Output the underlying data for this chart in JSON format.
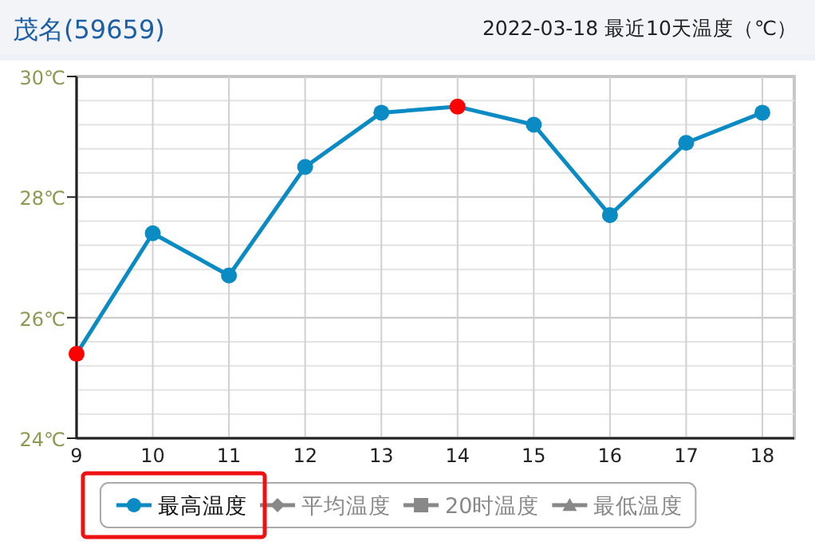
{
  "chart_data": {
    "type": "line",
    "title": "茂名(59659)",
    "subtitle": "2022-03-18 最近10天温度（℃）",
    "categories": [
      "9",
      "10",
      "11",
      "12",
      "13",
      "14",
      "15",
      "16",
      "17",
      "18"
    ],
    "series": [
      {
        "name": "最高温度",
        "color": "#0a8bc4",
        "colors": [
          "#ff0000",
          "#0a8bc4",
          "#0a8bc4",
          "#0a8bc4",
          "#0a8bc4",
          "#ff0000",
          "#0a8bc4",
          "#0a8bc4",
          "#0a8bc4",
          "#0a8bc4"
        ],
        "marker": "circle",
        "values": [
          25.4,
          27.4,
          26.7,
          28.5,
          29.4,
          29.5,
          29.2,
          27.7,
          28.9,
          29.4
        ]
      },
      {
        "name": "平均温度",
        "color": "#888888",
        "marker": "diamond",
        "values": [
          null,
          null,
          null,
          null,
          null,
          null,
          null,
          null,
          null,
          null
        ]
      },
      {
        "name": "20时温度",
        "color": "#888888",
        "marker": "square",
        "values": [
          null,
          null,
          null,
          null,
          null,
          null,
          null,
          null,
          null,
          null
        ]
      },
      {
        "name": "最低温度",
        "color": "#888888",
        "marker": "triangle",
        "values": [
          null,
          null,
          null,
          null,
          null,
          null,
          null,
          null,
          null,
          null
        ]
      }
    ],
    "ylim": [
      24,
      30
    ],
    "yticks": [
      {
        "value": 24,
        "label": "24℃"
      },
      {
        "value": 26,
        "label": "26℃"
      },
      {
        "value": 28,
        "label": "28℃"
      },
      {
        "value": 30,
        "label": "30℃"
      }
    ],
    "grid": true,
    "legend": "bottom"
  }
}
